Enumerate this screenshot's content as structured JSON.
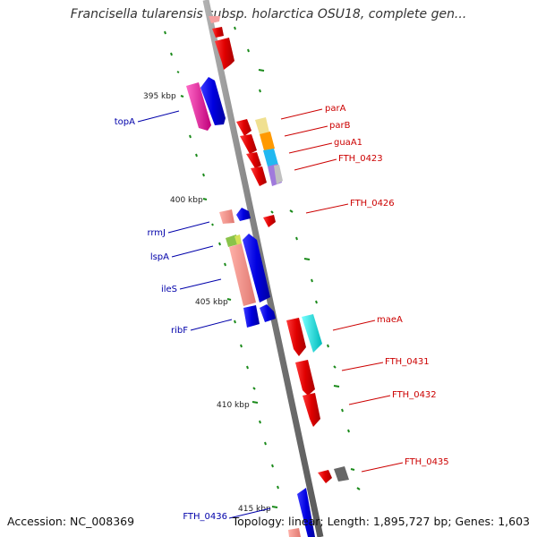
{
  "title": "Francisella tularensis subsp. holarctica OSU18, complete gen...",
  "footer": {
    "accession": "Accession: NC_008369",
    "stats": "Topology: linear; Length: 1,895,727 bp; Genes: 1,603"
  },
  "colors": {
    "forward_label": "#cc0000",
    "reverse_label": "#0000aa",
    "backbone": "#8c8c8c",
    "tick": "#1a8a1a"
  },
  "kbp_labels": [
    "395 kbp",
    "400 kbp",
    "405 kbp",
    "410 kbp",
    "415 kbp"
  ],
  "forward_genes": [
    "parA",
    "parB",
    "guaA1",
    "FTH_0423",
    "FTH_0426",
    "maeA",
    "FTH_0431",
    "FTH_0432",
    "FTH_0435"
  ],
  "reverse_genes": [
    "topA",
    "rrmJ",
    "lspA",
    "ileS",
    "ribF",
    "FTH_0436"
  ]
}
